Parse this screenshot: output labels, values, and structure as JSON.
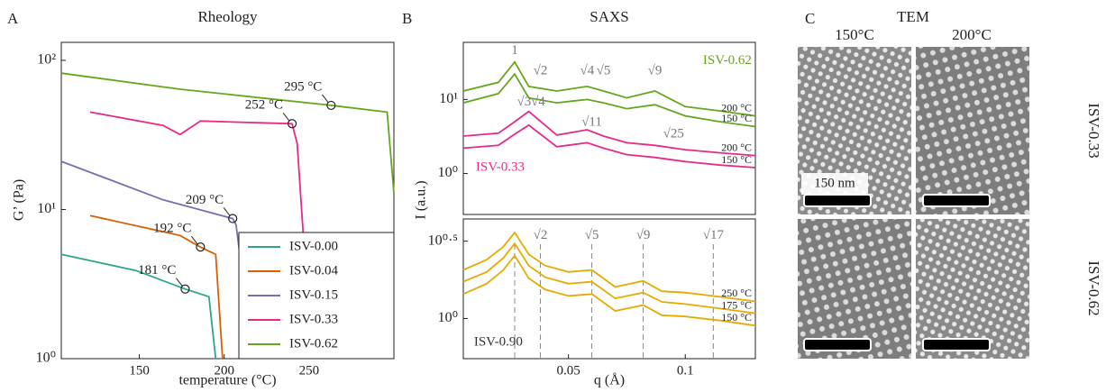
{
  "chart_data": [
    {
      "type": "line",
      "panel": "A",
      "title": "Rheology",
      "xlabel": "temperature (°C)",
      "ylabel": "G’ (Pa)",
      "xlim": [
        104,
        300
      ],
      "xticks": [
        150,
        200,
        250
      ],
      "ylim": [
        1,
        132
      ],
      "log_y": true,
      "yticks": [
        {
          "value": 1,
          "label": "10⁰"
        },
        {
          "value": 10,
          "label": "10¹"
        },
        {
          "value": 100,
          "label": "10²"
        }
      ],
      "legend": "lower right",
      "series": [
        {
          "name": "ISV-0.00",
          "color": "#2ca58d",
          "x": [
            104,
            148,
            177,
            191,
            195
          ],
          "values": [
            5.0,
            3.9,
            2.93,
            2.6,
            1
          ]
        },
        {
          "name": "ISV-0.04",
          "color": "#d95f02",
          "x": [
            121,
            174,
            186,
            195,
            199
          ],
          "values": [
            9.1,
            6.7,
            5.6,
            5.0,
            1
          ]
        },
        {
          "name": "ISV-0.15",
          "color": "#7570b3",
          "x": [
            104,
            164,
            205,
            207,
            209
          ],
          "values": [
            21,
            11.6,
            8.7,
            7.9,
            5.2
          ]
        },
        {
          "name": "ISV-0.33",
          "color": "#e7298a",
          "x": [
            121,
            164,
            174,
            186,
            240,
            243,
            247
          ],
          "values": [
            45,
            36.6,
            31.8,
            39.2,
            37.6,
            27.7,
            5.8
          ]
        },
        {
          "name": "ISV-0.62",
          "color": "#66a61e",
          "x": [
            104,
            174,
            263,
            296,
            300
          ],
          "values": [
            82,
            64,
            49.9,
            45,
            12.9
          ]
        }
      ],
      "annotations": [
        {
          "text": "181 °C",
          "x": 177,
          "y": 2.93
        },
        {
          "text": "192 °C",
          "x": 186,
          "y": 5.6
        },
        {
          "text": "209 °C",
          "x": 205,
          "y": 8.7
        },
        {
          "text": "252 °C",
          "x": 240,
          "y": 37.6
        },
        {
          "text": "295 °C",
          "x": 263,
          "y": 49.9
        }
      ]
    },
    {
      "type": "line",
      "panel": "B",
      "title": "SAXS",
      "ylabel": "I (a.u.)",
      "xlim": [
        0.005,
        0.13
      ],
      "ylim": [
        0.28,
        59
      ],
      "log_y": true,
      "yticks": [
        {
          "value": 1,
          "label": "10⁰"
        },
        {
          "value": 10,
          "label": "10¹"
        }
      ],
      "x": [
        0.005,
        0.02,
        0.027,
        0.033,
        0.045,
        0.058,
        0.065,
        0.075,
        0.087,
        0.1,
        0.115,
        0.13
      ],
      "series": [
        {
          "name": "200 °C",
          "color": "#66a61e",
          "values": [
            13,
            17,
            32,
            15,
            13,
            15,
            13,
            10.5,
            13,
            8,
            7,
            6
          ]
        },
        {
          "name": "150 °C",
          "color": "#66a61e",
          "values": [
            9,
            12,
            22,
            10.5,
            9,
            10,
            9,
            7.5,
            8.5,
            6,
            5,
            4.3
          ]
        },
        {
          "name": "200 °C",
          "color": "#e7298a",
          "values": [
            3.2,
            3.5,
            5,
            6.9,
            3.3,
            3.9,
            3.2,
            2.6,
            2.4,
            2.1,
            1.9,
            1.75
          ]
        },
        {
          "name": "150 °C",
          "color": "#e7298a",
          "values": [
            2.2,
            2.4,
            3.4,
            4.5,
            2.3,
            2.6,
            2.2,
            1.8,
            1.65,
            1.45,
            1.3,
            1.2
          ]
        }
      ],
      "annotations": [
        {
          "text": "1",
          "x": 0.027,
          "y": 45,
          "color": "#777"
        },
        {
          "text": "√2",
          "x": 0.038,
          "y": 24,
          "color": "#777"
        },
        {
          "text": "√4",
          "x": 0.058,
          "y": 24,
          "color": "#777"
        },
        {
          "text": "√5",
          "x": 0.065,
          "y": 24,
          "color": "#777"
        },
        {
          "text": "√9",
          "x": 0.087,
          "y": 24,
          "color": "#777"
        },
        {
          "text": "√3",
          "x": 0.031,
          "y": 9.2,
          "color": "#777"
        },
        {
          "text": "√4",
          "x": 0.037,
          "y": 9.2,
          "color": "#777"
        },
        {
          "text": "√11",
          "x": 0.06,
          "y": 4.9,
          "color": "#777"
        },
        {
          "text": "√25",
          "x": 0.095,
          "y": 3.4,
          "color": "#777"
        },
        {
          "text": "ISV-0.62",
          "x": 0.118,
          "y": 33,
          "color": "#66a61e"
        },
        {
          "text": "ISV-0.33",
          "x": 0.0208,
          "y": 1.2,
          "color": "#e7298a"
        }
      ]
    },
    {
      "type": "line",
      "xlabel": "q (Å)",
      "xlim": [
        0.005,
        0.13
      ],
      "xticks": [
        0.05,
        0.1
      ],
      "ylim": [
        0.55,
        4.4
      ],
      "log_y": true,
      "yticks": [
        {
          "value": 1,
          "label": "10⁰"
        },
        {
          "value": 3.1623,
          "label": "10⁰·⁵"
        }
      ],
      "guides": [
        0.027,
        0.038,
        0.06,
        0.082,
        0.112
      ],
      "x": [
        0.005,
        0.015,
        0.022,
        0.027,
        0.033,
        0.04,
        0.05,
        0.06,
        0.07,
        0.082,
        0.09,
        0.1,
        0.115,
        0.13
      ],
      "series": [
        {
          "name": "250 °C",
          "color": "#e6ab02",
          "values": [
            2.06,
            2.4,
            2.9,
            3.6,
            2.6,
            2.2,
            2.0,
            2.06,
            1.6,
            1.75,
            1.5,
            1.47,
            1.38,
            1.29
          ]
        },
        {
          "name": "175 °C",
          "color": "#e6ab02",
          "values": [
            1.73,
            2.0,
            2.45,
            3.05,
            2.2,
            1.85,
            1.68,
            1.73,
            1.35,
            1.47,
            1.28,
            1.24,
            1.16,
            1.08
          ]
        },
        {
          "name": "150 °C",
          "color": "#e6ab02",
          "values": [
            1.44,
            1.68,
            2.05,
            2.55,
            1.82,
            1.54,
            1.4,
            1.44,
            1.12,
            1.22,
            1.05,
            1.03,
            0.97,
            0.9
          ]
        }
      ],
      "annotations": [
        {
          "text": "√2",
          "x": 0.038,
          "y": 3.43,
          "color": "#777"
        },
        {
          "text": "√5",
          "x": 0.06,
          "y": 3.43,
          "color": "#777"
        },
        {
          "text": "√9",
          "x": 0.082,
          "y": 3.43,
          "color": "#777"
        },
        {
          "text": "√17",
          "x": 0.112,
          "y": 3.43,
          "color": "#777"
        },
        {
          "text": "ISV-0.90",
          "x": 0.02,
          "y": 0.7,
          "color": "#333"
        }
      ]
    }
  ],
  "tem": {
    "panel": "C",
    "title": "TEM",
    "columns": [
      "150°C",
      "200°C"
    ],
    "rows": [
      "ISV-0.33",
      "ISV-0.62"
    ],
    "scale_bar": "150 nm"
  }
}
